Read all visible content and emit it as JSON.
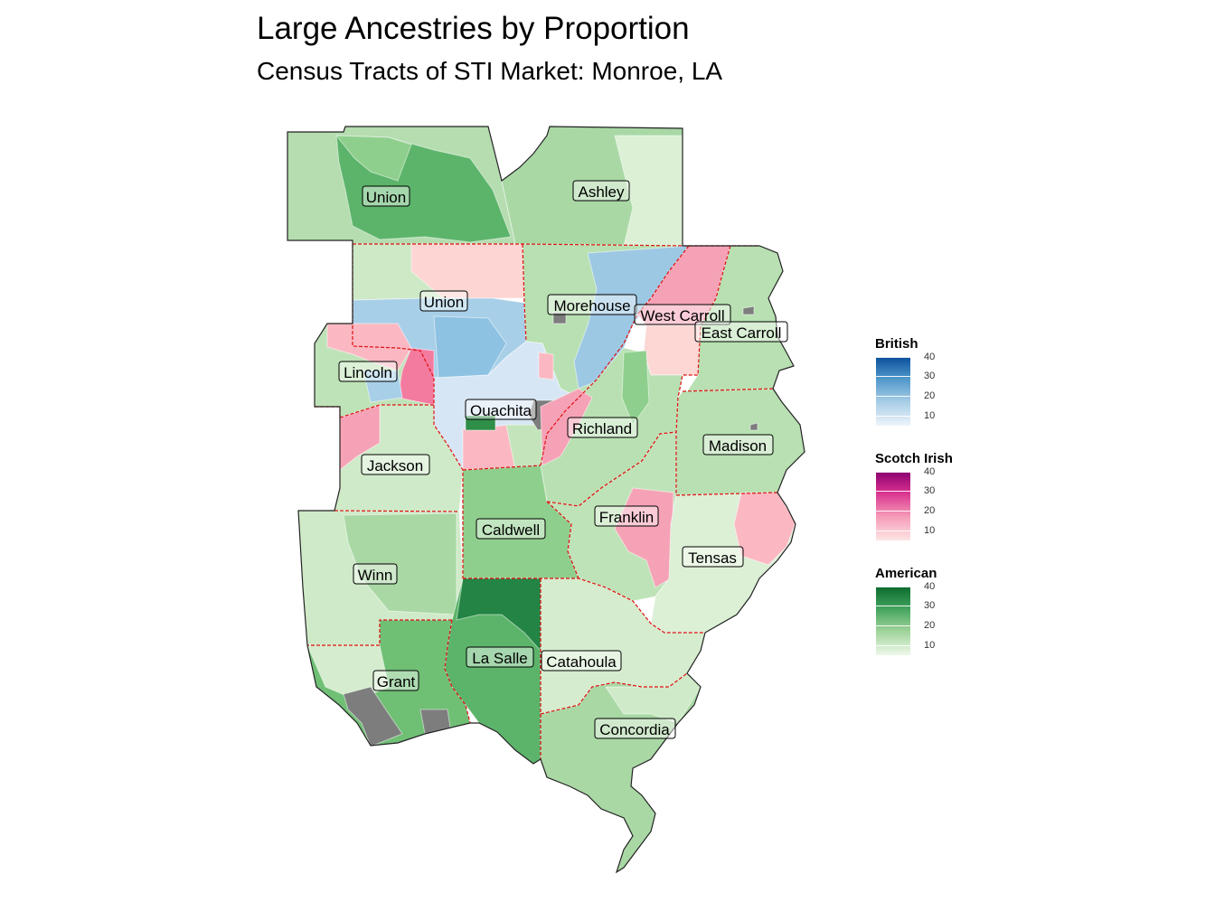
{
  "title": "Large Ancestries by Proportion",
  "subtitle": "Census Tracts of STI Market: Monroe, LA",
  "colors": {
    "british": [
      "#e8f0fa",
      "#0f4f9a"
    ],
    "scotch_irish": [
      "#fde2e0",
      "#8c0272"
    ],
    "american": [
      "#e8f5e4",
      "#0c6b2e"
    ],
    "missing": "#7d7d7d",
    "county_border": "#e01010"
  },
  "labels": {
    "union_ar": "Union",
    "ashley": "Ashley",
    "union_la": "Union",
    "morehouse": "Morehouse",
    "west_carroll": "West Carroll",
    "east_carroll": "East Carroll",
    "lincoln": "Lincoln",
    "ouachita": "Ouachita",
    "richland": "Richland",
    "madison": "Madison",
    "jackson": "Jackson",
    "franklin": "Franklin",
    "caldwell": "Caldwell",
    "tensas": "Tensas",
    "winn": "Winn",
    "la_salle": "La Salle",
    "catahoula": "Catahoula",
    "grant": "Grant",
    "concordia": "Concordia"
  },
  "legend": {
    "british": {
      "title": "British",
      "ticks": [
        "40",
        "30",
        "20",
        "10"
      ]
    },
    "scotch_irish": {
      "title": "Scotch Irish",
      "ticks": [
        "40",
        "30",
        "20",
        "10"
      ]
    },
    "american": {
      "title": "American",
      "ticks": [
        "40",
        "30",
        "20",
        "10"
      ]
    }
  }
}
